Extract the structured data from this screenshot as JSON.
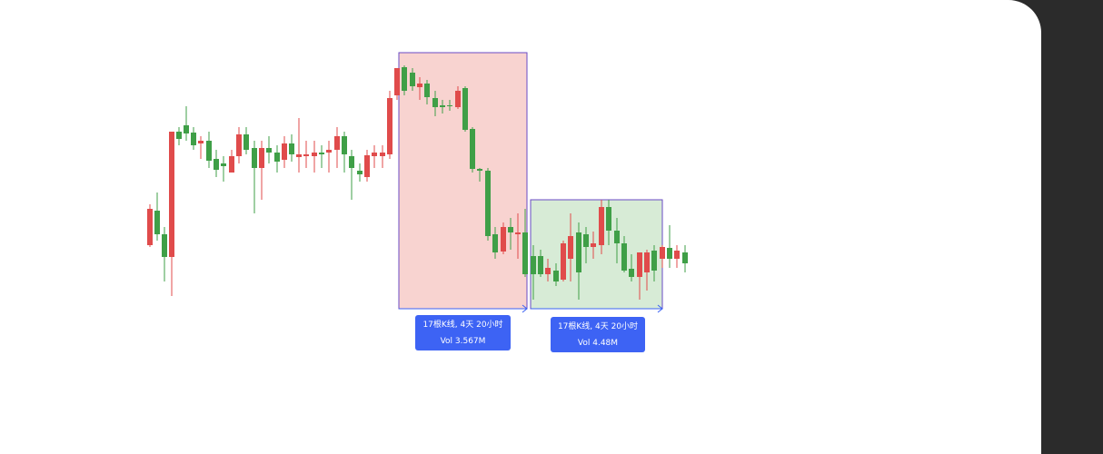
{
  "measurements": [
    {
      "bars_duration": "17根K线, 4天 20小时",
      "volume": "Vol 3.567M"
    },
    {
      "bars_duration": "17根K线, 4天 20小时",
      "volume": "Vol 4.48M"
    }
  ]
}
